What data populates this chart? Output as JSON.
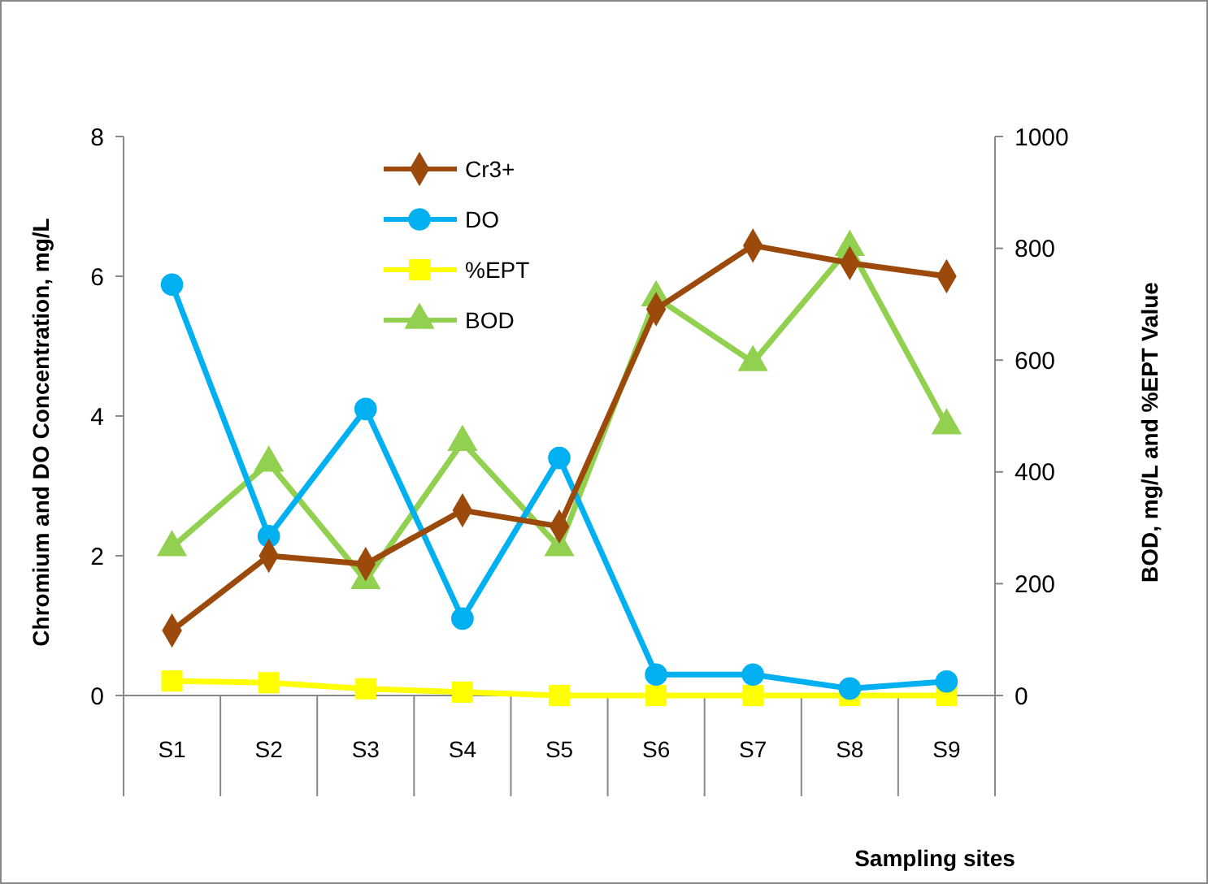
{
  "chart_data": {
    "type": "line",
    "xlabel": "Sampling sites",
    "ylabel": "Chromium  and DO Concentration, mg/L",
    "y2label": "BOD, mg/L and %EPT Value",
    "categories": [
      "S1",
      "S2",
      "S3",
      "S4",
      "S5",
      "S6",
      "S7",
      "S8",
      "S9"
    ],
    "series": [
      {
        "name": "Cr3+",
        "color": "#9c4a0c",
        "marker": "diamond",
        "values": [
          0.93,
          2.0,
          1.88,
          2.65,
          2.42,
          5.53,
          6.44,
          6.19,
          6.0
        ]
      },
      {
        "name": "DO",
        "color": "#00b0f0",
        "marker": "circle",
        "values": [
          5.88,
          2.28,
          4.1,
          1.1,
          3.4,
          0.3,
          0.3,
          0.1,
          0.2
        ]
      },
      {
        "name": "%EPT",
        "color": "#ffff00",
        "marker": "square",
        "axis": "y2",
        "values": [
          26,
          23,
          12,
          6,
          0,
          0,
          0,
          0,
          0
        ]
      },
      {
        "name": "BOD",
        "color": "#92d050",
        "marker": "triangle",
        "axis": "y2",
        "values": [
          265,
          416,
          206,
          453,
          265,
          712,
          596,
          802,
          483
        ]
      }
    ],
    "ylim": [
      0,
      8
    ],
    "yticks": [
      0,
      2,
      4,
      6,
      8
    ],
    "y2lim": [
      0,
      1000
    ],
    "y2ticks": [
      0,
      200,
      400,
      600,
      800,
      1000
    ],
    "grid": false,
    "legend": "top left"
  }
}
